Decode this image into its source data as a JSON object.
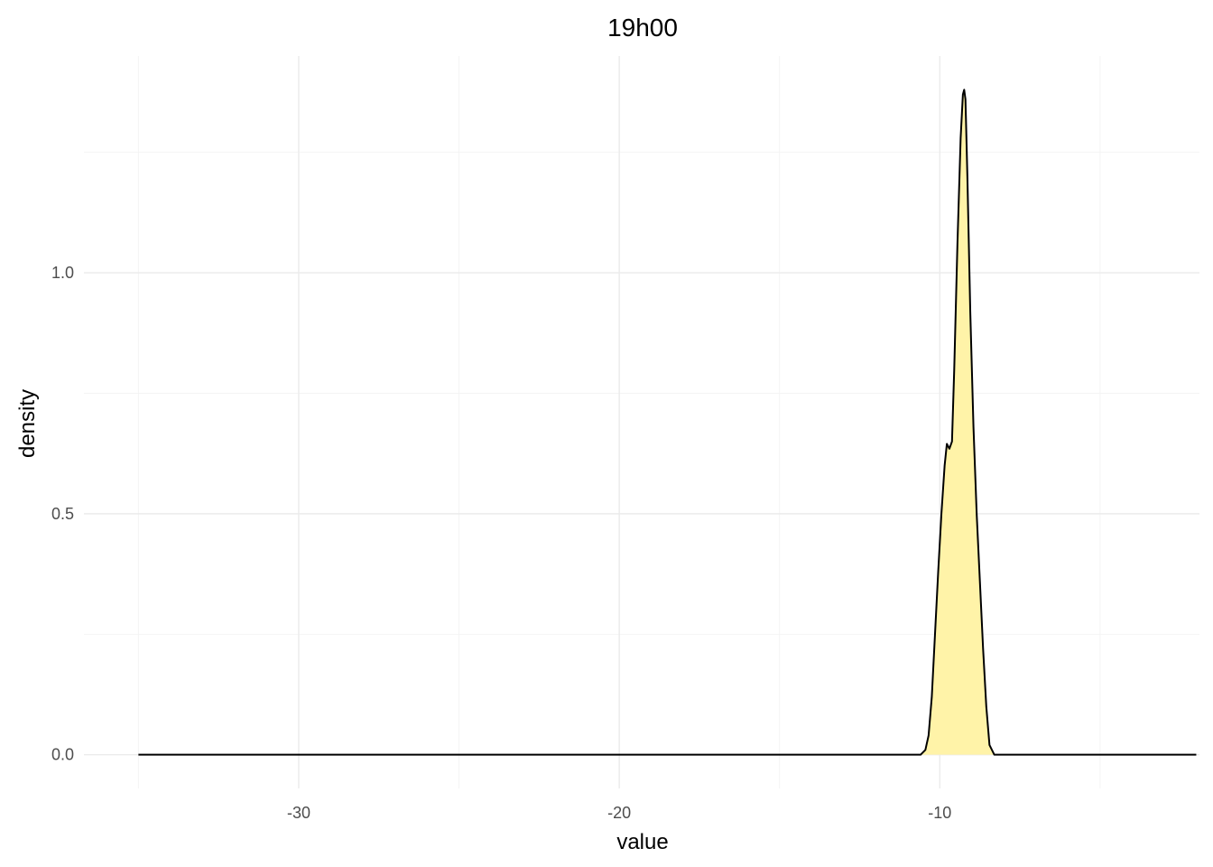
{
  "chart_data": {
    "type": "area",
    "title": "19h00",
    "xlabel": "value",
    "ylabel": "density",
    "xlim": [
      -36.7,
      -1.9
    ],
    "ylim": [
      -0.07,
      1.45
    ],
    "x_ticks": [
      -30,
      -20,
      -10
    ],
    "x_tick_labels": [
      "-30",
      "-20",
      "-10"
    ],
    "x_minor_ticks": [
      -35,
      -25,
      -15,
      -5
    ],
    "y_ticks": [
      0.0,
      0.5,
      1.0
    ],
    "y_tick_labels": [
      "0.0",
      "0.5",
      "1.0"
    ],
    "y_minor_ticks": [
      0.25,
      0.75,
      1.25
    ],
    "grid": true,
    "legend": "none",
    "fill_color": "#fff3a8",
    "line_color": "#000000",
    "series": [
      {
        "x": [
          -35.0,
          -10.6,
          -10.45,
          -10.35,
          -10.25,
          -10.15,
          -10.05,
          -9.95,
          -9.85,
          -9.78,
          -9.7,
          -9.62,
          -9.55,
          -9.45,
          -9.35,
          -9.28,
          -9.24,
          -9.2,
          -9.14,
          -9.05,
          -8.95,
          -8.85,
          -8.75,
          -8.65,
          -8.55,
          -8.45,
          -8.3,
          -2.0
        ],
        "y": [
          0.0,
          0.0,
          0.01,
          0.04,
          0.12,
          0.25,
          0.38,
          0.5,
          0.6,
          0.645,
          0.635,
          0.65,
          0.8,
          1.06,
          1.28,
          1.37,
          1.38,
          1.36,
          1.2,
          0.92,
          0.68,
          0.5,
          0.36,
          0.22,
          0.1,
          0.02,
          0.0,
          0.0
        ]
      }
    ]
  }
}
